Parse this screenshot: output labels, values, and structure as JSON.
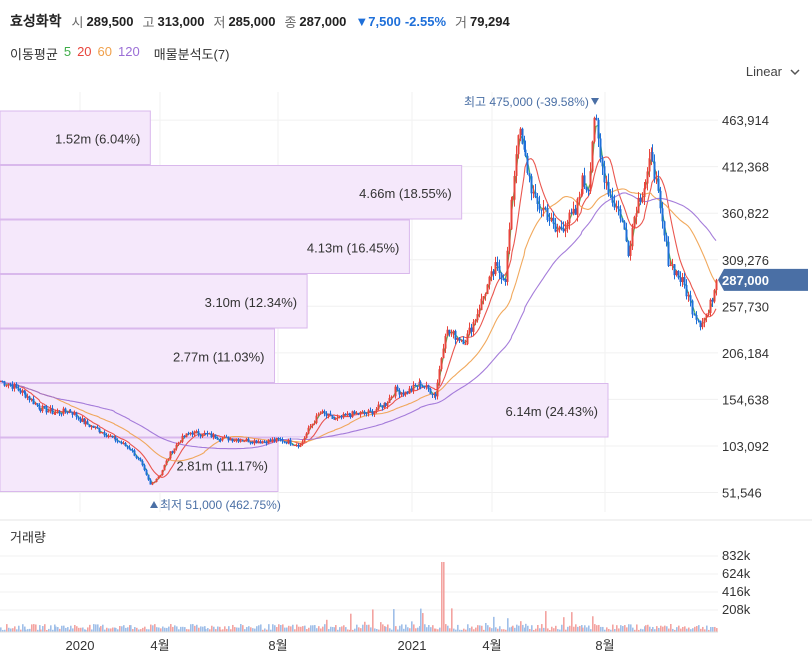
{
  "header": {
    "name": "효성화학",
    "open_label": "시",
    "open": "289,500",
    "high_label": "고",
    "high": "313,000",
    "low_label": "저",
    "low": "285,000",
    "close_label": "종",
    "close": "287,000",
    "change": "▼7,500",
    "change_pct": "-2.55%",
    "volume_label": "거",
    "volume": "79,294"
  },
  "indicators": {
    "ma_label": "이동평균",
    "ma": [
      {
        "period": "5",
        "color": "#3fae49"
      },
      {
        "period": "20",
        "color": "#e8453c"
      },
      {
        "period": "60",
        "color": "#f0a04b"
      },
      {
        "period": "120",
        "color": "#9b6fd6"
      }
    ],
    "vp_label": "매물분석도(7)"
  },
  "scale_label": "Linear",
  "price_axis": [
    "463,914",
    "412,368",
    "360,822",
    "309,276",
    "257,730",
    "206,184",
    "154,638",
    "103,092",
    "51,546"
  ],
  "current_price": "287,000",
  "high_marker": "최고 475,000 (-39.58%)",
  "low_marker": "최저 51,000 (462.75%)",
  "volume_title": "거래량",
  "volume_axis": [
    "832k",
    "624k",
    "416k",
    "208k"
  ],
  "x_labels": [
    "2020",
    "4월",
    "8월",
    "2021",
    "4월",
    "8월"
  ],
  "chart_data": {
    "type": "candlestick",
    "y_range": [
      30000,
      495000
    ],
    "close_series": [
      [
        0,
        175000
      ],
      [
        12,
        170000
      ],
      [
        25,
        160000
      ],
      [
        40,
        145000
      ],
      [
        55,
        140000
      ],
      [
        70,
        142000
      ],
      [
        85,
        128000
      ],
      [
        100,
        120000
      ],
      [
        115,
        110000
      ],
      [
        130,
        100000
      ],
      [
        140,
        85000
      ],
      [
        150,
        60000
      ],
      [
        160,
        72000
      ],
      [
        170,
        95000
      ],
      [
        180,
        110000
      ],
      [
        190,
        118000
      ],
      [
        205,
        116000
      ],
      [
        220,
        112000
      ],
      [
        240,
        110000
      ],
      [
        260,
        108000
      ],
      [
        280,
        110000
      ],
      [
        300,
        104000
      ],
      [
        310,
        125000
      ],
      [
        320,
        140000
      ],
      [
        335,
        132000
      ],
      [
        350,
        138000
      ],
      [
        370,
        140000
      ],
      [
        385,
        150000
      ],
      [
        395,
        165000
      ],
      [
        405,
        162000
      ],
      [
        420,
        172000
      ],
      [
        435,
        160000
      ],
      [
        445,
        230000
      ],
      [
        455,
        225000
      ],
      [
        465,
        220000
      ],
      [
        475,
        245000
      ],
      [
        485,
        275000
      ],
      [
        495,
        300000
      ],
      [
        505,
        290000
      ],
      [
        512,
        380000
      ],
      [
        518,
        455000
      ],
      [
        525,
        420000
      ],
      [
        535,
        370000
      ],
      [
        545,
        365000
      ],
      [
        555,
        340000
      ],
      [
        565,
        350000
      ],
      [
        575,
        360000
      ],
      [
        582,
        395000
      ],
      [
        588,
        390000
      ],
      [
        594,
        470000
      ],
      [
        600,
        420000
      ],
      [
        610,
        380000
      ],
      [
        620,
        360000
      ],
      [
        628,
        320000
      ],
      [
        636,
        370000
      ],
      [
        645,
        395000
      ],
      [
        652,
        425000
      ],
      [
        660,
        360000
      ],
      [
        668,
        310000
      ],
      [
        676,
        295000
      ],
      [
        684,
        280000
      ],
      [
        692,
        255000
      ],
      [
        700,
        240000
      ],
      [
        708,
        250000
      ],
      [
        716,
        287000
      ]
    ],
    "volume_profile": [
      {
        "label": "1.52m (6.04%)",
        "pct": 6.04
      },
      {
        "label": "4.66m (18.55%)",
        "pct": 18.55
      },
      {
        "label": "4.13m (16.45%)",
        "pct": 16.45
      },
      {
        "label": "3.10m (12.34%)",
        "pct": 12.34
      },
      {
        "label": "2.77m (11.03%)",
        "pct": 11.03
      },
      {
        "label": "6.14m (24.43%)",
        "pct": 24.43
      },
      {
        "label": "2.81m (11.17%)",
        "pct": 11.17
      }
    ]
  }
}
